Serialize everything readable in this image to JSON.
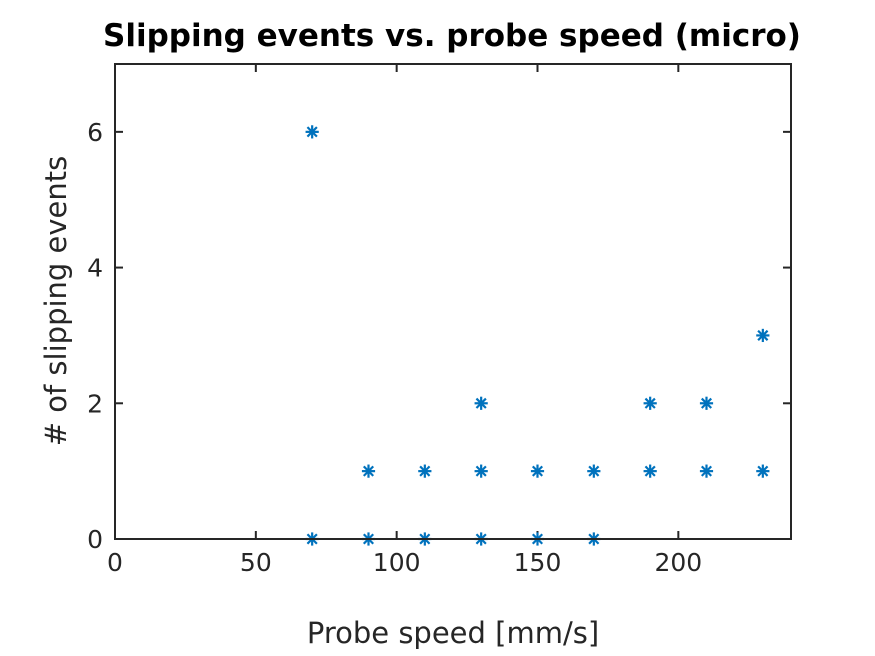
{
  "chart_data": {
    "type": "scatter",
    "title": "Slipping events vs. probe speed (micro)",
    "xlabel": "Probe speed [mm/s]",
    "ylabel": "# of slipping events",
    "xlim": [
      0,
      240
    ],
    "ylim": [
      0,
      7
    ],
    "xticks": [
      0,
      50,
      100,
      150,
      200
    ],
    "yticks": [
      0,
      2,
      4,
      6
    ],
    "grid": false,
    "marker": "asterisk",
    "color": "#0072BD",
    "points": [
      {
        "x": 70,
        "y": 6
      },
      {
        "x": 70,
        "y": 0
      },
      {
        "x": 90,
        "y": 1
      },
      {
        "x": 90,
        "y": 0
      },
      {
        "x": 110,
        "y": 1
      },
      {
        "x": 110,
        "y": 0
      },
      {
        "x": 130,
        "y": 2
      },
      {
        "x": 130,
        "y": 1
      },
      {
        "x": 130,
        "y": 0
      },
      {
        "x": 150,
        "y": 1
      },
      {
        "x": 150,
        "y": 0
      },
      {
        "x": 170,
        "y": 1
      },
      {
        "x": 170,
        "y": 0
      },
      {
        "x": 190,
        "y": 2
      },
      {
        "x": 190,
        "y": 1
      },
      {
        "x": 210,
        "y": 2
      },
      {
        "x": 210,
        "y": 1
      },
      {
        "x": 230,
        "y": 3
      },
      {
        "x": 230,
        "y": 1
      }
    ]
  }
}
